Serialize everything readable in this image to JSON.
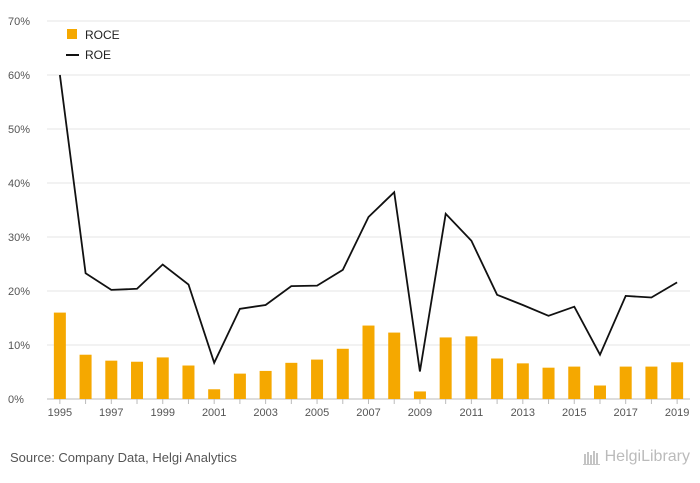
{
  "chart_data": {
    "type": "bar",
    "x": [
      1995,
      1996,
      1997,
      1998,
      1999,
      2000,
      2001,
      2002,
      2003,
      2004,
      2005,
      2006,
      2007,
      2008,
      2009,
      2010,
      2011,
      2012,
      2013,
      2014,
      2015,
      2016,
      2017,
      2018,
      2019
    ],
    "x_tick_labels": [
      "1995",
      "1997",
      "1999",
      "2001",
      "2003",
      "2005",
      "2007",
      "2009",
      "2011",
      "2013",
      "2015",
      "2017",
      "2019"
    ],
    "y_tick_labels": [
      "0%",
      "10%",
      "20%",
      "30%",
      "40%",
      "50%",
      "60%",
      "70%"
    ],
    "ylim": [
      0,
      70
    ],
    "grid": true,
    "legend_position": "top-left",
    "series": [
      {
        "name": "ROCE",
        "type": "bar",
        "color": "#f5a800",
        "values": [
          16.0,
          8.2,
          7.1,
          6.9,
          7.7,
          6.2,
          1.8,
          4.7,
          5.2,
          6.7,
          7.3,
          9.3,
          13.6,
          12.3,
          1.4,
          11.4,
          11.6,
          7.5,
          6.6,
          5.8,
          6.0,
          2.5,
          6.0,
          6.0,
          6.8
        ]
      },
      {
        "name": "ROE",
        "type": "line",
        "color": "#111111",
        "values": [
          60.0,
          23.3,
          20.2,
          20.4,
          24.9,
          21.2,
          6.7,
          16.7,
          17.4,
          20.9,
          21.0,
          23.9,
          33.7,
          38.3,
          5.1,
          34.3,
          29.3,
          19.3,
          17.4,
          15.4,
          17.1,
          8.2,
          19.1,
          18.8,
          21.6
        ]
      }
    ]
  },
  "footer": {
    "source": "Source: Company Data, Helgi Analytics",
    "brand": "HelgiLibrary"
  }
}
